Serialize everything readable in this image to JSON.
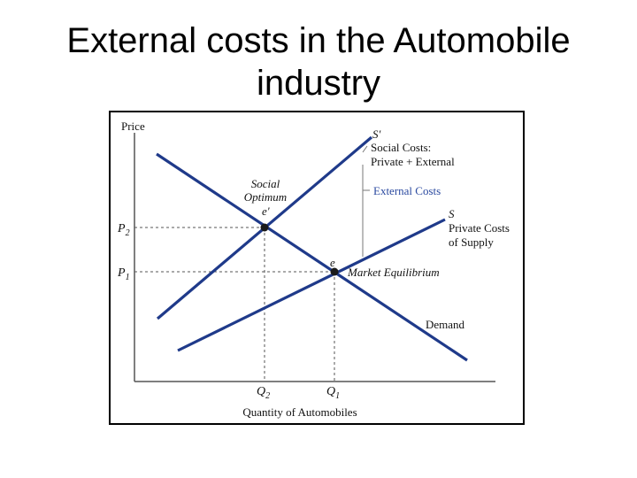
{
  "slide": {
    "title_line1": "External costs in the Automobile",
    "title_line2": "industry"
  },
  "figure": {
    "y_axis_label": "Price",
    "x_axis_label": "Quantity of Automobiles",
    "p2": "P",
    "p2_sub": "2",
    "p1": "P",
    "p1_sub": "1",
    "q2": "Q",
    "q2_sub": "2",
    "q1": "Q",
    "q1_sub": "1",
    "social_supply_curve": "S'",
    "social_costs_line1": "Social Costs:",
    "social_costs_line2": "Private + External",
    "external_costs": "External Costs",
    "private_supply_curve": "S",
    "private_costs_line1": "Private Costs",
    "private_costs_line2": "of Supply",
    "social_optimum_line1": "Social",
    "social_optimum_line2": "Optimum",
    "point_e_prime": "e'",
    "point_e": "e",
    "market_equilibrium": "Market Equilibrium",
    "demand": "Demand"
  },
  "colors": {
    "curve": "#1f3a8a",
    "external_costs_text": "#2b4aa0",
    "axis": "#555555",
    "text": "#111111"
  }
}
